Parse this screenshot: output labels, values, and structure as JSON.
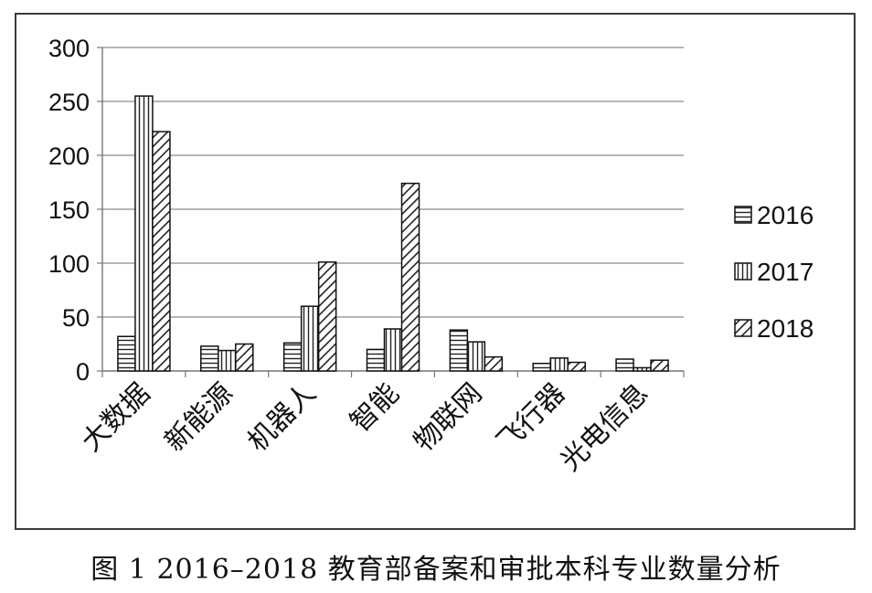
{
  "chart_data": {
    "type": "bar",
    "categories": [
      "大数据",
      "新能源",
      "机器人",
      "智能",
      "物联网",
      "飞行器",
      "光电信息"
    ],
    "series": [
      {
        "name": "2016",
        "values": [
          32,
          23,
          26,
          20,
          38,
          7,
          11
        ]
      },
      {
        "name": "2017",
        "values": [
          255,
          19,
          60,
          39,
          27,
          12,
          3
        ]
      },
      {
        "name": "2018",
        "values": [
          222,
          25,
          101,
          174,
          13,
          8,
          10
        ]
      }
    ],
    "ylim": [
      0,
      300
    ],
    "yticks": [
      0,
      50,
      100,
      150,
      200,
      250,
      300
    ],
    "grid": true,
    "legend": "right",
    "patterns": [
      "horizontal-lines",
      "vertical-lines",
      "diagonal-lines"
    ]
  },
  "caption": "图 1 2016–2018 教育部备案和审批本科专业数量分析"
}
